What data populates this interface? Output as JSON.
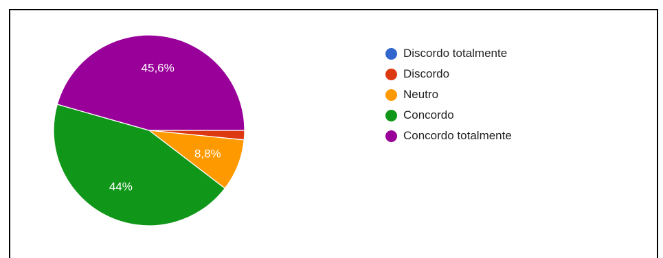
{
  "chart_data": {
    "type": "pie",
    "series": [
      {
        "name": "Discordo totalmente",
        "value": 0.0,
        "color": "#3366cc",
        "label": ""
      },
      {
        "name": "Discordo",
        "value": 1.6,
        "color": "#dc3912",
        "label": ""
      },
      {
        "name": "Neutro",
        "value": 8.8,
        "color": "#ff9900",
        "label": "8,8%"
      },
      {
        "name": "Concordo",
        "value": 44.0,
        "color": "#109618",
        "label": "44%"
      },
      {
        "name": "Concordo totalmente",
        "value": 45.6,
        "color": "#990099",
        "label": "45,6%"
      }
    ],
    "start_angle_deg": 90,
    "direction": "clockwise",
    "legend_position": "right"
  },
  "legend": {
    "items": [
      {
        "label": "Discordo totalmente",
        "color": "#3366cc"
      },
      {
        "label": "Discordo",
        "color": "#dc3912"
      },
      {
        "label": "Neutro",
        "color": "#ff9900"
      },
      {
        "label": "Concordo",
        "color": "#109618"
      },
      {
        "label": "Concordo totalmente",
        "color": "#990099"
      }
    ]
  }
}
